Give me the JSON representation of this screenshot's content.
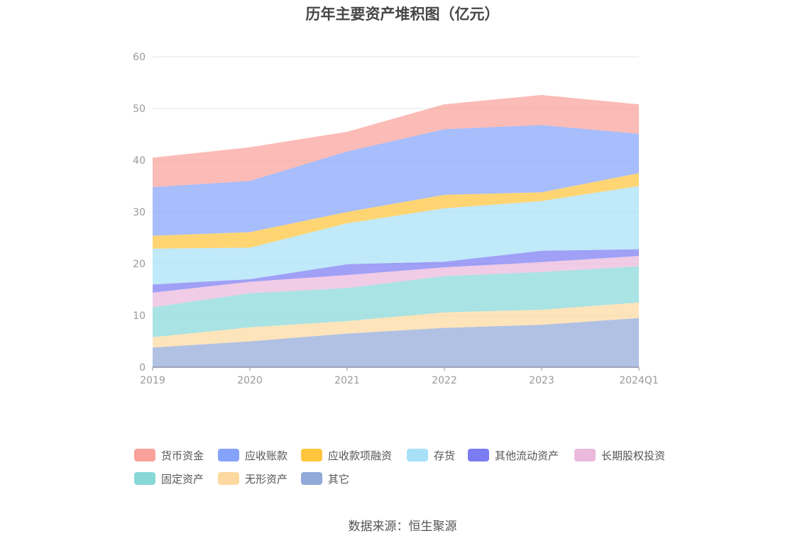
{
  "title": "历年主要资产堆积图（亿元）",
  "source": "数据来源：恒生聚源",
  "chart_data": {
    "type": "area",
    "stacked": true,
    "title": "历年主要资产堆积图（亿元）",
    "categories": [
      "2019",
      "2020",
      "2021",
      "2022",
      "2023",
      "2024Q1"
    ],
    "ylim": [
      0,
      60
    ],
    "yticks": [
      0,
      10,
      20,
      30,
      40,
      50,
      60
    ],
    "grid": true,
    "legend_position": "bottom",
    "series": [
      {
        "name": "其它",
        "color": "#91a9d8",
        "values": [
          3.8,
          5.0,
          6.5,
          7.6,
          8.2,
          9.5
        ]
      },
      {
        "name": "无形资产",
        "color": "#fdd9a0",
        "values": [
          2.0,
          2.7,
          2.4,
          3.0,
          2.9,
          3.0
        ]
      },
      {
        "name": "固定资产",
        "color": "#88d8d8",
        "values": [
          5.8,
          6.6,
          6.4,
          7.0,
          7.3,
          7.0
        ]
      },
      {
        "name": "长期股权投资",
        "color": "#ebb9dc",
        "values": [
          2.8,
          2.2,
          2.5,
          1.7,
          1.9,
          2.0
        ]
      },
      {
        "name": "其他流动资产",
        "color": "#7b7bf2",
        "values": [
          1.6,
          0.5,
          2.1,
          1.1,
          2.2,
          1.3
        ]
      },
      {
        "name": "存货",
        "color": "#a8e0f8",
        "values": [
          6.9,
          6.1,
          7.9,
          10.3,
          9.6,
          12.2
        ]
      },
      {
        "name": "应收款项融资",
        "color": "#ffc53d",
        "values": [
          2.5,
          3.0,
          2.2,
          2.6,
          1.7,
          2.5
        ]
      },
      {
        "name": "应收账款",
        "color": "#85a3fb",
        "values": [
          9.4,
          9.9,
          11.7,
          12.7,
          13.0,
          7.6
        ]
      },
      {
        "name": "货币资金",
        "color": "#f9a19a",
        "values": [
          5.7,
          6.5,
          3.8,
          4.8,
          5.8,
          5.7
        ]
      }
    ]
  },
  "legend": [
    {
      "label": "货币资金",
      "color": "#f9a19a"
    },
    {
      "label": "应收账款",
      "color": "#85a3fb"
    },
    {
      "label": "应收款项融资",
      "color": "#ffc53d"
    },
    {
      "label": "存货",
      "color": "#a8e0f8"
    },
    {
      "label": "其他流动资产",
      "color": "#7b7bf2"
    },
    {
      "label": "长期股权投资",
      "color": "#ebb9dc"
    },
    {
      "label": "固定资产",
      "color": "#88d8d8"
    },
    {
      "label": "无形资产",
      "color": "#fdd9a0"
    },
    {
      "label": "其它",
      "color": "#91a9d8"
    }
  ]
}
